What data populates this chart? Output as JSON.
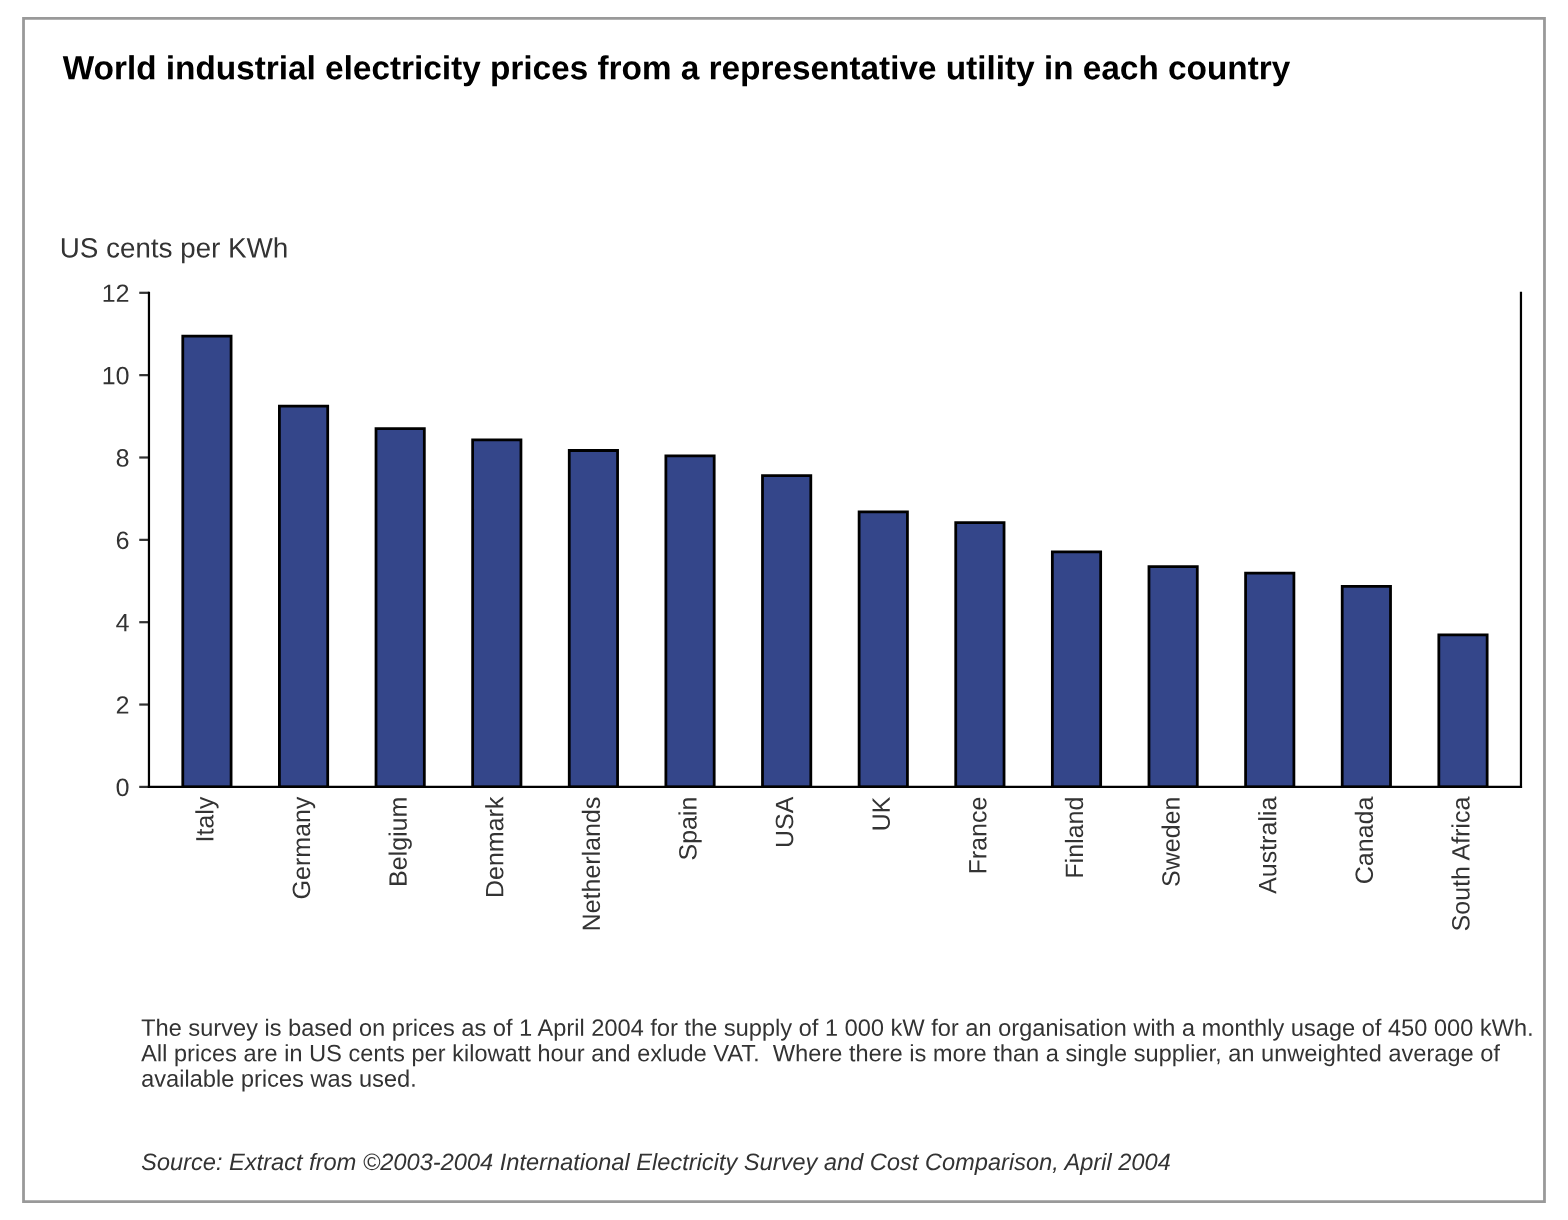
{
  "chart_data": {
    "type": "bar",
    "title": "World industrial electricity prices from a representative utility in each country",
    "ylabel": "US cents per KWh",
    "categories": [
      "Italy",
      "Germany",
      "Belgium",
      "Denmark",
      "Netherlands",
      "Spain",
      "USA",
      "UK",
      "France",
      "Finland",
      "Sweden",
      "Australia",
      "Canada",
      "South Africa"
    ],
    "values": [
      10.95,
      9.25,
      8.7,
      8.43,
      8.17,
      8.04,
      7.56,
      6.68,
      6.42,
      5.71,
      5.35,
      5.19,
      4.87,
      3.69
    ],
    "color": "#34468a",
    "ylim": [
      0,
      12
    ],
    "yticks": [
      0,
      2,
      4,
      6,
      8,
      10,
      12
    ],
    "grid": false,
    "annotations": [
      "The survey is based on prices as of 1 April 2004 for the supply of 1 000 kW for an organisation with a monthly usage of 450 000 kWh.  All prices are in US cents per kilowatt hour and exlude VAT.  Where there is more than a single supplier, an unweighted average of available prices was used.",
      "Source: Extract from ©2003-2004 International Electricity Survey and Cost Comparison, April 2004"
    ]
  }
}
